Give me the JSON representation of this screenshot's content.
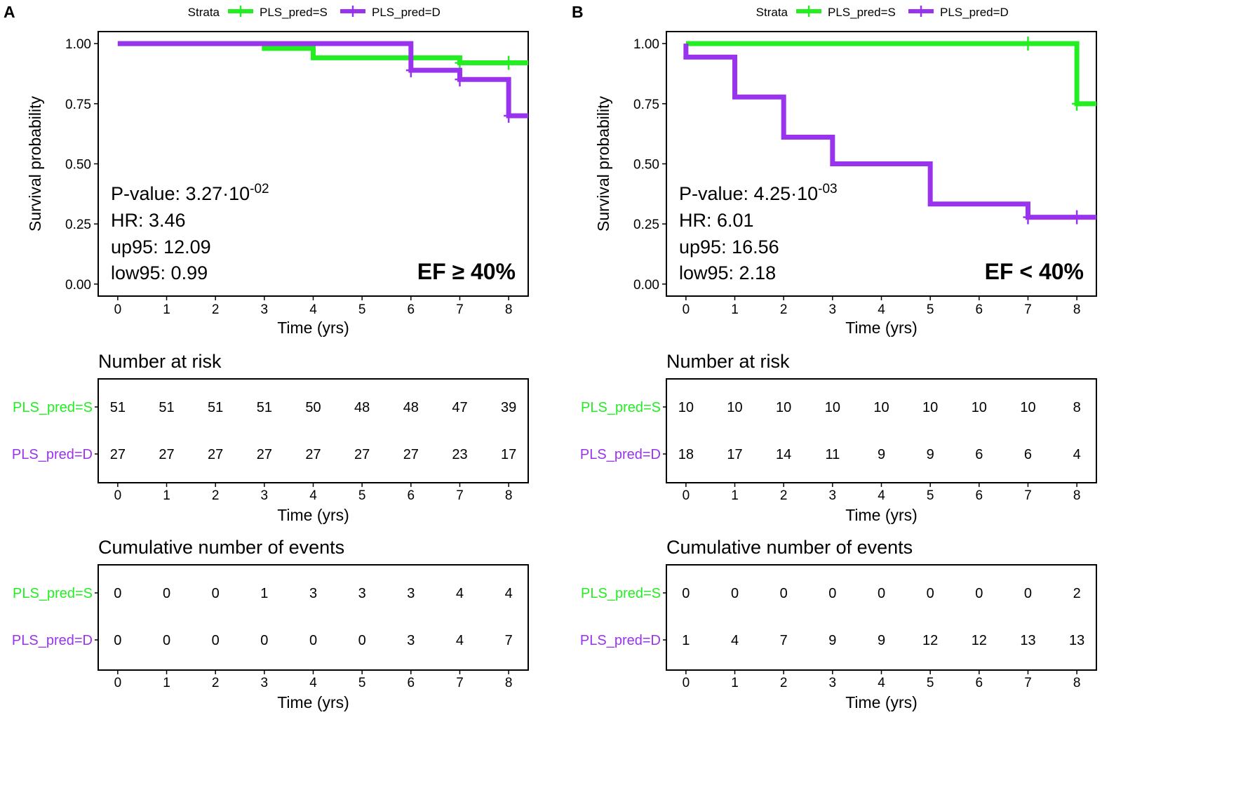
{
  "colors": {
    "S": "#22ee22",
    "D": "#9933ee",
    "axis": "#000000"
  },
  "chart_data": [
    {
      "type": "line",
      "subtype": "kaplan-meier",
      "panel_label": "A",
      "legend": {
        "title": "Strata",
        "placement": "top",
        "entries": [
          "PLS_pred=S",
          "PLS_pred=D"
        ]
      },
      "xlabel": "Time (yrs)",
      "ylabel": "Survival probability",
      "xlim": [
        -0.4,
        8.4
      ],
      "ylim": [
        -0.05,
        1.05
      ],
      "xticks": [
        0,
        1,
        2,
        3,
        4,
        5,
        6,
        7,
        8
      ],
      "yticks": [
        "0.00",
        "0.25",
        "0.50",
        "0.75",
        "1.00"
      ],
      "series": [
        {
          "name": "PLS_pred=S",
          "color_key": "S",
          "steps": [
            [
              0,
              1.0
            ],
            [
              3,
              0.98
            ],
            [
              4,
              0.941
            ],
            [
              7,
              0.92
            ]
          ],
          "end_x": 8.4,
          "censors": [
            [
              7,
              0.92
            ],
            [
              8,
              0.92
            ]
          ]
        },
        {
          "name": "PLS_pred=D",
          "color_key": "D",
          "steps": [
            [
              0,
              1.0
            ],
            [
              6,
              0.889
            ],
            [
              7,
              0.851
            ],
            [
              8,
              0.7
            ]
          ],
          "end_x": 8.4,
          "censors": [
            [
              6,
              0.889
            ],
            [
              7,
              0.851
            ],
            [
              8,
              0.7
            ]
          ]
        }
      ],
      "stats": {
        "pvalue_base": "P-value: 3.27·10",
        "pvalue_exp": "-02",
        "hr": "HR: 3.46",
        "up95": "up95: 12.09",
        "low95": "low95: 0.99"
      },
      "condition": "EF ≥ 40%",
      "risk_table": {
        "title": "Number at risk",
        "rows": [
          {
            "label": "PLS_pred=S",
            "color_key": "S",
            "values": [
              51,
              51,
              51,
              51,
              50,
              48,
              48,
              47,
              39
            ]
          },
          {
            "label": "PLS_pred=D",
            "color_key": "D",
            "values": [
              27,
              27,
              27,
              27,
              27,
              27,
              27,
              23,
              17
            ]
          }
        ]
      },
      "events_table": {
        "title": "Cumulative number of events",
        "rows": [
          {
            "label": "PLS_pred=S",
            "color_key": "S",
            "values": [
              0,
              0,
              0,
              1,
              3,
              3,
              3,
              4,
              4
            ]
          },
          {
            "label": "PLS_pred=D",
            "color_key": "D",
            "values": [
              0,
              0,
              0,
              0,
              0,
              0,
              3,
              4,
              7
            ]
          }
        ]
      }
    },
    {
      "type": "line",
      "subtype": "kaplan-meier",
      "panel_label": "B",
      "legend": {
        "title": "Strata",
        "placement": "top",
        "entries": [
          "PLS_pred=S",
          "PLS_pred=D"
        ]
      },
      "xlabel": "Time (yrs)",
      "ylabel": "Survival probability",
      "xlim": [
        -0.4,
        8.4
      ],
      "ylim": [
        -0.05,
        1.05
      ],
      "xticks": [
        0,
        1,
        2,
        3,
        4,
        5,
        6,
        7,
        8
      ],
      "yticks": [
        "0.00",
        "0.25",
        "0.50",
        "0.75",
        "1.00"
      ],
      "series": [
        {
          "name": "PLS_pred=S",
          "color_key": "S",
          "steps": [
            [
              0,
              1.0
            ],
            [
              8,
              0.75
            ]
          ],
          "end_x": 8.4,
          "censors": [
            [
              7,
              1.0
            ],
            [
              8,
              0.75
            ]
          ]
        },
        {
          "name": "PLS_pred=D",
          "color_key": "D",
          "steps": [
            [
              0,
              0.944
            ],
            [
              1,
              0.778
            ],
            [
              2,
              0.611
            ],
            [
              3,
              0.5
            ],
            [
              5,
              0.333
            ],
            [
              7,
              0.278
            ]
          ],
          "start_y": 1.0,
          "end_x": 8.4,
          "censors": [
            [
              7,
              0.278
            ],
            [
              8,
              0.278
            ]
          ]
        }
      ],
      "stats": {
        "pvalue_base": "P-value: 4.25·10",
        "pvalue_exp": "-03",
        "hr": "HR: 6.01",
        "up95": "up95: 16.56",
        "low95": "low95: 2.18"
      },
      "condition": "EF < 40%",
      "risk_table": {
        "title": "Number at risk",
        "rows": [
          {
            "label": "PLS_pred=S",
            "color_key": "S",
            "values": [
              10,
              10,
              10,
              10,
              10,
              10,
              10,
              10,
              8
            ]
          },
          {
            "label": "PLS_pred=D",
            "color_key": "D",
            "values": [
              18,
              17,
              14,
              11,
              9,
              9,
              6,
              6,
              4
            ]
          }
        ]
      },
      "events_table": {
        "title": "Cumulative number of events",
        "rows": [
          {
            "label": "PLS_pred=S",
            "color_key": "S",
            "values": [
              0,
              0,
              0,
              0,
              0,
              0,
              0,
              0,
              2
            ]
          },
          {
            "label": "PLS_pred=D",
            "color_key": "D",
            "values": [
              1,
              4,
              7,
              9,
              9,
              12,
              12,
              13,
              13
            ]
          }
        ]
      }
    }
  ]
}
